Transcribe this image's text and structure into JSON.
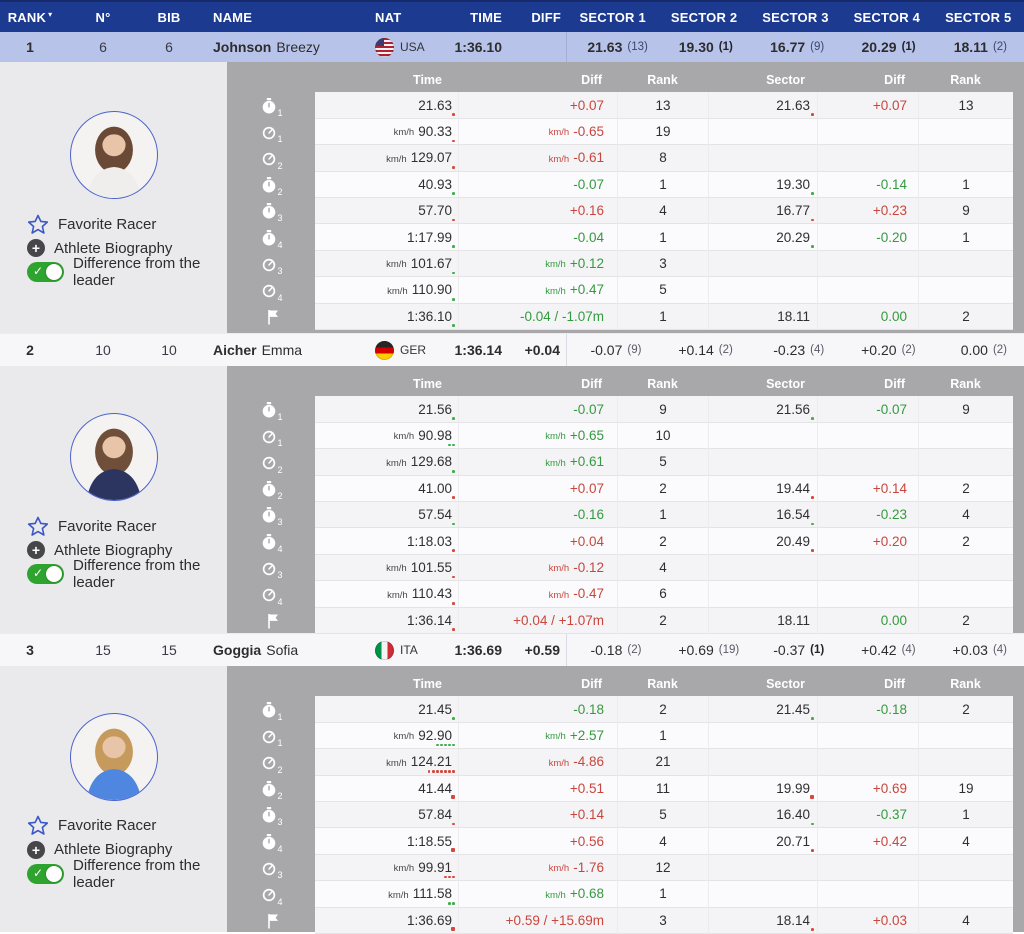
{
  "colors": {
    "header_navy": "#1d3a91",
    "selected_row_blue": "#b8c3ea",
    "negative_red": "#c9463d",
    "positive_green": "#349a3f",
    "panel_gray": "#a8a8aa",
    "left_panel_gray": "#eaeaec"
  },
  "header": {
    "sort_indicator": "▾",
    "columns": [
      "RANK",
      "N°",
      "BIB",
      "NAME",
      "NAT",
      "TIME",
      "DIFF",
      "SECTOR 1",
      "SECTOR 2",
      "SECTOR 3",
      "SECTOR 4",
      "SECTOR 5"
    ]
  },
  "detail_columns": [
    "Time",
    "Diff",
    "Rank",
    "Sector",
    "Diff",
    "Rank"
  ],
  "panel": {
    "favorite": "Favorite Racer",
    "biography": "Athlete Biography",
    "difference_toggle": "Difference from the leader",
    "toggle_state": "on"
  },
  "racers": [
    {
      "rank": "1",
      "n": "6",
      "bib": "6",
      "last_name": "Johnson",
      "first_name": "Breezy",
      "nat_code": "USA",
      "flag": "usa",
      "time": "1:36.10",
      "diff": "",
      "values_bold": true,
      "avatar": {
        "hair": "#6a4a36",
        "jacket": "#efeeec"
      },
      "sectors": [
        {
          "value": "21.63",
          "rank": "(13)",
          "rank_bold": false
        },
        {
          "value": "19.30",
          "rank": "(1)",
          "rank_bold": true
        },
        {
          "value": "16.77",
          "rank": "(9)",
          "rank_bold": false
        },
        {
          "value": "20.29",
          "rank": "(1)",
          "rank_bold": true
        },
        {
          "value": "18.11",
          "rank": "(2)",
          "rank_bold": false
        }
      ],
      "detail_rows": [
        {
          "icon": "stopwatch",
          "sub": "1",
          "time": "21.63",
          "time_prefix": "",
          "diff": "+0.07",
          "diff_prefix": "",
          "diff_color": "red",
          "rank": "13",
          "sector": "21.63",
          "sector_diff": "+0.07",
          "sector_diff_color": "red",
          "sector_rank": "13",
          "time_dots": {
            "color": "red",
            "count": 1,
            "big": false
          },
          "sector_dots": {
            "color": "red",
            "count": 1,
            "big": false
          }
        },
        {
          "icon": "speedometer",
          "sub": "1",
          "time": "90.33",
          "time_prefix": "km/h",
          "diff": "-0.65",
          "diff_prefix": "km/h",
          "diff_color": "red",
          "rank": "19",
          "sector": "",
          "sector_diff": "",
          "sector_diff_color": "",
          "sector_rank": "",
          "time_dots": {
            "color": "red",
            "count": 1,
            "big": false
          },
          "sector_dots": null
        },
        {
          "icon": "speedometer",
          "sub": "2",
          "time": "129.07",
          "time_prefix": "km/h",
          "diff": "-0.61",
          "diff_prefix": "km/h",
          "diff_color": "red",
          "rank": "8",
          "sector": "",
          "sector_diff": "",
          "sector_diff_color": "",
          "sector_rank": "",
          "time_dots": {
            "color": "red",
            "count": 1,
            "big": false
          },
          "sector_dots": null
        },
        {
          "icon": "stopwatch",
          "sub": "2",
          "time": "40.93",
          "time_prefix": "",
          "diff": "-0.07",
          "diff_prefix": "",
          "diff_color": "green",
          "rank": "1",
          "sector": "19.30",
          "sector_diff": "-0.14",
          "sector_diff_color": "green",
          "sector_rank": "1",
          "time_dots": {
            "color": "green",
            "count": 1,
            "big": false
          },
          "sector_dots": {
            "color": "green",
            "count": 1,
            "big": false
          }
        },
        {
          "icon": "stopwatch",
          "sub": "3",
          "time": "57.70",
          "time_prefix": "",
          "diff": "+0.16",
          "diff_prefix": "",
          "diff_color": "red",
          "rank": "4",
          "sector": "16.77",
          "sector_diff": "+0.23",
          "sector_diff_color": "red",
          "sector_rank": "9",
          "time_dots": {
            "color": "red",
            "count": 1,
            "big": false
          },
          "sector_dots": {
            "color": "red",
            "count": 1,
            "big": false
          }
        },
        {
          "icon": "stopwatch",
          "sub": "4",
          "time": "1:17.99",
          "time_prefix": "",
          "diff": "-0.04",
          "diff_prefix": "",
          "diff_color": "green",
          "rank": "1",
          "sector": "20.29",
          "sector_diff": "-0.20",
          "sector_diff_color": "green",
          "sector_rank": "1",
          "time_dots": {
            "color": "green",
            "count": 1,
            "big": false
          },
          "sector_dots": {
            "color": "green",
            "count": 1,
            "big": false
          }
        },
        {
          "icon": "speedometer",
          "sub": "3",
          "time": "101.67",
          "time_prefix": "km/h",
          "diff": "+0.12",
          "diff_prefix": "km/h",
          "diff_color": "green",
          "rank": "3",
          "sector": "",
          "sector_diff": "",
          "sector_diff_color": "",
          "sector_rank": "",
          "time_dots": {
            "color": "green",
            "count": 1,
            "big": false
          },
          "sector_dots": null
        },
        {
          "icon": "speedometer",
          "sub": "4",
          "time": "110.90",
          "time_prefix": "km/h",
          "diff": "+0.47",
          "diff_prefix": "km/h",
          "diff_color": "green",
          "rank": "5",
          "sector": "",
          "sector_diff": "",
          "sector_diff_color": "",
          "sector_rank": "",
          "time_dots": {
            "color": "green",
            "count": 1,
            "big": false
          },
          "sector_dots": null
        },
        {
          "icon": "flag",
          "sub": "",
          "time": "1:36.10",
          "time_prefix": "",
          "diff": "-0.04 / -1.07m",
          "diff_prefix": "",
          "diff_color": "green",
          "rank": "1",
          "sector": "18.11",
          "sector_diff": "0.00",
          "sector_diff_color": "green",
          "sector_rank": "2",
          "time_dots": {
            "color": "green",
            "count": 1,
            "big": false
          },
          "sector_dots": null
        }
      ]
    },
    {
      "rank": "2",
      "n": "10",
      "bib": "10",
      "last_name": "Aicher",
      "first_name": "Emma",
      "nat_code": "GER",
      "flag": "ger",
      "time": "1:36.14",
      "diff": "+0.04",
      "values_bold": false,
      "avatar": {
        "hair": "#6f4f3a",
        "jacket": "#2c3560"
      },
      "sectors": [
        {
          "value": "-0.07",
          "rank": "(9)",
          "rank_bold": false
        },
        {
          "value": "+0.14",
          "rank": "(2)",
          "rank_bold": false
        },
        {
          "value": "-0.23",
          "rank": "(4)",
          "rank_bold": false
        },
        {
          "value": "+0.20",
          "rank": "(2)",
          "rank_bold": false
        },
        {
          "value": "0.00",
          "rank": "(2)",
          "rank_bold": false
        }
      ],
      "detail_rows": [
        {
          "icon": "stopwatch",
          "sub": "1",
          "time": "21.56",
          "time_prefix": "",
          "diff": "-0.07",
          "diff_prefix": "",
          "diff_color": "green",
          "rank": "9",
          "sector": "21.56",
          "sector_diff": "-0.07",
          "sector_diff_color": "green",
          "sector_rank": "9",
          "time_dots": {
            "color": "green",
            "count": 1,
            "big": false
          },
          "sector_dots": {
            "color": "green",
            "count": 1,
            "big": false
          }
        },
        {
          "icon": "speedometer",
          "sub": "1",
          "time": "90.98",
          "time_prefix": "km/h",
          "diff": "+0.65",
          "diff_prefix": "km/h",
          "diff_color": "green",
          "rank": "10",
          "sector": "",
          "sector_diff": "",
          "sector_diff_color": "",
          "sector_rank": "",
          "time_dots": {
            "color": "green",
            "count": 2,
            "big": false
          },
          "sector_dots": null
        },
        {
          "icon": "speedometer",
          "sub": "2",
          "time": "129.68",
          "time_prefix": "km/h",
          "diff": "+0.61",
          "diff_prefix": "km/h",
          "diff_color": "green",
          "rank": "5",
          "sector": "",
          "sector_diff": "",
          "sector_diff_color": "",
          "sector_rank": "",
          "time_dots": {
            "color": "green",
            "count": 1,
            "big": false
          },
          "sector_dots": null
        },
        {
          "icon": "stopwatch",
          "sub": "2",
          "time": "41.00",
          "time_prefix": "",
          "diff": "+0.07",
          "diff_prefix": "",
          "diff_color": "red",
          "rank": "2",
          "sector": "19.44",
          "sector_diff": "+0.14",
          "sector_diff_color": "red",
          "sector_rank": "2",
          "time_dots": {
            "color": "red",
            "count": 1,
            "big": false
          },
          "sector_dots": {
            "color": "red",
            "count": 1,
            "big": false
          }
        },
        {
          "icon": "stopwatch",
          "sub": "3",
          "time": "57.54",
          "time_prefix": "",
          "diff": "-0.16",
          "diff_prefix": "",
          "diff_color": "green",
          "rank": "1",
          "sector": "16.54",
          "sector_diff": "-0.23",
          "sector_diff_color": "green",
          "sector_rank": "4",
          "time_dots": {
            "color": "green",
            "count": 1,
            "big": false
          },
          "sector_dots": {
            "color": "green",
            "count": 1,
            "big": false
          }
        },
        {
          "icon": "stopwatch",
          "sub": "4",
          "time": "1:18.03",
          "time_prefix": "",
          "diff": "+0.04",
          "diff_prefix": "",
          "diff_color": "red",
          "rank": "2",
          "sector": "20.49",
          "sector_diff": "+0.20",
          "sector_diff_color": "red",
          "sector_rank": "2",
          "time_dots": {
            "color": "red",
            "count": 1,
            "big": false
          },
          "sector_dots": {
            "color": "red",
            "count": 1,
            "big": false
          }
        },
        {
          "icon": "speedometer",
          "sub": "3",
          "time": "101.55",
          "time_prefix": "km/h",
          "diff": "-0.12",
          "diff_prefix": "km/h",
          "diff_color": "red",
          "rank": "4",
          "sector": "",
          "sector_diff": "",
          "sector_diff_color": "",
          "sector_rank": "",
          "time_dots": {
            "color": "red",
            "count": 1,
            "big": false
          },
          "sector_dots": null
        },
        {
          "icon": "speedometer",
          "sub": "4",
          "time": "110.43",
          "time_prefix": "km/h",
          "diff": "-0.47",
          "diff_prefix": "km/h",
          "diff_color": "red",
          "rank": "6",
          "sector": "",
          "sector_diff": "",
          "sector_diff_color": "",
          "sector_rank": "",
          "time_dots": {
            "color": "red",
            "count": 1,
            "big": false
          },
          "sector_dots": null
        },
        {
          "icon": "flag",
          "sub": "",
          "time": "1:36.14",
          "time_prefix": "",
          "diff": "+0.04 / +1.07m",
          "diff_prefix": "",
          "diff_color": "red",
          "rank": "2",
          "sector": "18.11",
          "sector_diff": "0.00",
          "sector_diff_color": "green",
          "sector_rank": "2",
          "time_dots": {
            "color": "red",
            "count": 1,
            "big": false
          },
          "sector_dots": null
        }
      ]
    },
    {
      "rank": "3",
      "n": "15",
      "bib": "15",
      "last_name": "Goggia",
      "first_name": "Sofia",
      "nat_code": "ITA",
      "flag": "ita",
      "time": "1:36.69",
      "diff": "+0.59",
      "values_bold": false,
      "avatar": {
        "hair": "#c6995c",
        "jacket": "#4f86e0"
      },
      "sectors": [
        {
          "value": "-0.18",
          "rank": "(2)",
          "rank_bold": false
        },
        {
          "value": "+0.69",
          "rank": "(19)",
          "rank_bold": false
        },
        {
          "value": "-0.37",
          "rank": "(1)",
          "rank_bold": true
        },
        {
          "value": "+0.42",
          "rank": "(4)",
          "rank_bold": false
        },
        {
          "value": "+0.03",
          "rank": "(4)",
          "rank_bold": false
        }
      ],
      "detail_rows": [
        {
          "icon": "stopwatch",
          "sub": "1",
          "time": "21.45",
          "time_prefix": "",
          "diff": "-0.18",
          "diff_prefix": "",
          "diff_color": "green",
          "rank": "2",
          "sector": "21.45",
          "sector_diff": "-0.18",
          "sector_diff_color": "green",
          "sector_rank": "2",
          "time_dots": {
            "color": "green",
            "count": 1,
            "big": false
          },
          "sector_dots": {
            "color": "green",
            "count": 1,
            "big": false
          }
        },
        {
          "icon": "speedometer",
          "sub": "1",
          "time": "92.90",
          "time_prefix": "km/h",
          "diff": "+2.57",
          "diff_prefix": "km/h",
          "diff_color": "green",
          "rank": "1",
          "sector": "",
          "sector_diff": "",
          "sector_diff_color": "",
          "sector_rank": "",
          "time_dots": {
            "color": "green",
            "count": 5,
            "big": false
          },
          "sector_dots": null
        },
        {
          "icon": "speedometer",
          "sub": "2",
          "time": "124.21",
          "time_prefix": "km/h",
          "diff": "-4.86",
          "diff_prefix": "km/h",
          "diff_color": "red",
          "rank": "21",
          "sector": "",
          "sector_diff": "",
          "sector_diff_color": "",
          "sector_rank": "",
          "time_dots": {
            "color": "red",
            "count": 7,
            "big": false
          },
          "sector_dots": null
        },
        {
          "icon": "stopwatch",
          "sub": "2",
          "time": "41.44",
          "time_prefix": "",
          "diff": "+0.51",
          "diff_prefix": "",
          "diff_color": "red",
          "rank": "11",
          "sector": "19.99",
          "sector_diff": "+0.69",
          "sector_diff_color": "red",
          "sector_rank": "19",
          "time_dots": {
            "color": "red",
            "count": 1,
            "big": true
          },
          "sector_dots": {
            "color": "red",
            "count": 1,
            "big": true
          }
        },
        {
          "icon": "stopwatch",
          "sub": "3",
          "time": "57.84",
          "time_prefix": "",
          "diff": "+0.14",
          "diff_prefix": "",
          "diff_color": "red",
          "rank": "5",
          "sector": "16.40",
          "sector_diff": "-0.37",
          "sector_diff_color": "green",
          "sector_rank": "1",
          "time_dots": {
            "color": "red",
            "count": 1,
            "big": false
          },
          "sector_dots": {
            "color": "green",
            "count": 1,
            "big": false
          }
        },
        {
          "icon": "stopwatch",
          "sub": "4",
          "time": "1:18.55",
          "time_prefix": "",
          "diff": "+0.56",
          "diff_prefix": "",
          "diff_color": "red",
          "rank": "4",
          "sector": "20.71",
          "sector_diff": "+0.42",
          "sector_diff_color": "red",
          "sector_rank": "4",
          "time_dots": {
            "color": "red",
            "count": 1,
            "big": true
          },
          "sector_dots": {
            "color": "red",
            "count": 1,
            "big": false
          }
        },
        {
          "icon": "speedometer",
          "sub": "3",
          "time": "99.91",
          "time_prefix": "km/h",
          "diff": "-1.76",
          "diff_prefix": "km/h",
          "diff_color": "red",
          "rank": "12",
          "sector": "",
          "sector_diff": "",
          "sector_diff_color": "",
          "sector_rank": "",
          "time_dots": {
            "color": "red",
            "count": 3,
            "big": false
          },
          "sector_dots": null
        },
        {
          "icon": "speedometer",
          "sub": "4",
          "time": "111.58",
          "time_prefix": "km/h",
          "diff": "+0.68",
          "diff_prefix": "km/h",
          "diff_color": "green",
          "rank": "1",
          "sector": "",
          "sector_diff": "",
          "sector_diff_color": "",
          "sector_rank": "",
          "time_dots": {
            "color": "green",
            "count": 2,
            "big": false
          },
          "sector_dots": null
        },
        {
          "icon": "flag",
          "sub": "",
          "time": "1:36.69",
          "time_prefix": "",
          "diff": "+0.59 / +15.69m",
          "diff_prefix": "",
          "diff_color": "red",
          "rank": "3",
          "sector": "18.14",
          "sector_diff": "+0.03",
          "sector_diff_color": "red",
          "sector_rank": "4",
          "time_dots": {
            "color": "red",
            "count": 1,
            "big": true
          },
          "sector_dots": {
            "color": "red",
            "count": 1,
            "big": false
          }
        }
      ]
    }
  ]
}
